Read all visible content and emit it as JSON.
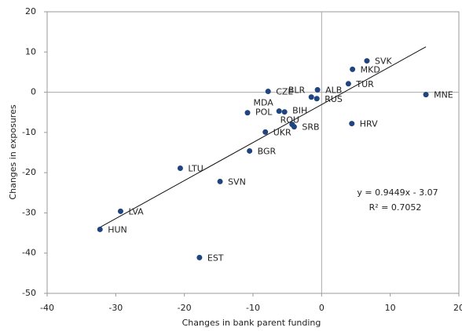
{
  "chart_data": {
    "type": "scatter",
    "x_label": "Changes in bank parent funding",
    "y_label": "Changes in exposures",
    "labels": [
      "SVK",
      "MKD",
      "TUR",
      "ALB",
      "BLR",
      "RUS",
      "MNE",
      "CZE",
      "MDA",
      "BIH",
      "POL",
      "ROU",
      "SRB",
      "UKR",
      "HRV",
      "BGR",
      "LTU",
      "SVN",
      "LVA",
      "HUN",
      "EST"
    ],
    "x": [
      6.6,
      4.5,
      3.9,
      -0.6,
      -1.5,
      -0.7,
      15.2,
      -7.8,
      -6.2,
      -5.4,
      -10.8,
      -4.3,
      -4.0,
      -8.2,
      4.4,
      -10.5,
      -20.6,
      -14.8,
      -29.3,
      -32.3,
      -17.8
    ],
    "values": [
      7.8,
      5.7,
      2.1,
      0.6,
      -1.2,
      -1.6,
      -0.6,
      0.2,
      -4.7,
      -4.9,
      -5.1,
      -8.0,
      -8.6,
      -9.9,
      -7.8,
      -14.6,
      -18.9,
      -22.2,
      -29.6,
      -34.1,
      -41.1
    ],
    "color": "#1f4480",
    "trendline": {
      "slope": 0.9449,
      "intercept": -3.07,
      "equation": "y = 0.9449x - 3.07",
      "r2": "R² = 0.7052"
    },
    "xlim": [
      -40,
      20
    ],
    "xticks": [
      -40,
      -30,
      -20,
      -10,
      0,
      10,
      20
    ],
    "ylim": [
      -50,
      20
    ],
    "yticks": [
      -50,
      -40,
      -30,
      -20,
      -10,
      0,
      10,
      20
    ],
    "grid": false
  }
}
